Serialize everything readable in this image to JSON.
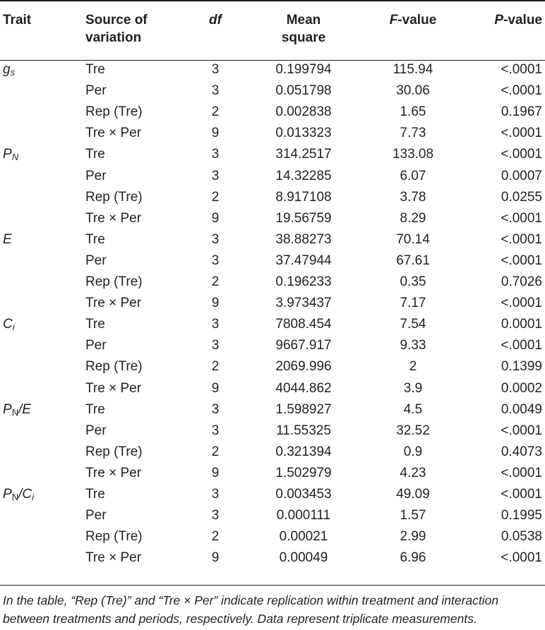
{
  "headers": {
    "trait": "Trait",
    "source_line1": "Source of",
    "source_line2": "variation",
    "df": "df",
    "mean_line1": "Mean",
    "mean_line2": "square",
    "f_italic": "F",
    "f_rest": "-value",
    "p_italic": "P",
    "p_rest": "-value"
  },
  "traits": [
    {
      "main": "g",
      "sub": "s",
      "suffix": ""
    },
    {
      "main": "P",
      "sub": "N",
      "suffix": ""
    },
    {
      "main": "E",
      "sub": "",
      "suffix": ""
    },
    {
      "main": "C",
      "sub": "i",
      "suffix": ""
    },
    {
      "main": "P",
      "sub": "N",
      "suffix": "/E"
    },
    {
      "main": "P",
      "sub": "N",
      "suffix": "/C",
      "suffix_sub": "i"
    }
  ],
  "rows": [
    {
      "source": "Tre",
      "df": "3",
      "ms": "0.199794",
      "f": "115.94",
      "p": "<.0001"
    },
    {
      "source": "Per",
      "df": "3",
      "ms": "0.051798",
      "f": "30.06",
      "p": "<.0001"
    },
    {
      "source": "Rep (Tre)",
      "df": "2",
      "ms": "0.002838",
      "f": "1.65",
      "p": "0.1967"
    },
    {
      "source": "Tre × Per",
      "df": "9",
      "ms": "0.013323",
      "f": "7.73",
      "p": "<.0001"
    },
    {
      "source": "Tre",
      "df": "3",
      "ms": "314.2517",
      "f": "133.08",
      "p": "<.0001"
    },
    {
      "source": "Per",
      "df": "3",
      "ms": "14.32285",
      "f": "6.07",
      "p": "0.0007"
    },
    {
      "source": "Rep (Tre)",
      "df": "2",
      "ms": "8.917108",
      "f": "3.78",
      "p": "0.0255"
    },
    {
      "source": "Tre × Per",
      "df": "9",
      "ms": "19.56759",
      "f": "8.29",
      "p": "<.0001"
    },
    {
      "source": "Tre",
      "df": "3",
      "ms": "38.88273",
      "f": "70.14",
      "p": "<.0001"
    },
    {
      "source": "Per",
      "df": "3",
      "ms": "37.47944",
      "f": "67.61",
      "p": "<.0001"
    },
    {
      "source": "Rep (Tre)",
      "df": "2",
      "ms": "0.196233",
      "f": "0.35",
      "p": "0.7026"
    },
    {
      "source": "Tre × Per",
      "df": "9",
      "ms": "3.973437",
      "f": "7.17",
      "p": "<.0001"
    },
    {
      "source": "Tre",
      "df": "3",
      "ms": "7808.454",
      "f": "7.54",
      "p": "0.0001"
    },
    {
      "source": "Per",
      "df": "3",
      "ms": "9667.917",
      "f": "9.33",
      "p": "<.0001"
    },
    {
      "source": "Rep (Tre)",
      "df": "2",
      "ms": "2069.996",
      "f": "2",
      "p": "0.1399"
    },
    {
      "source": "Tre × Per",
      "df": "9",
      "ms": "4044.862",
      "f": "3.9",
      "p": "0.0002"
    },
    {
      "source": "Tre",
      "df": "3",
      "ms": "1.598927",
      "f": "4.5",
      "p": "0.0049"
    },
    {
      "source": "Per",
      "df": "3",
      "ms": "11.55325",
      "f": "32.52",
      "p": "<.0001"
    },
    {
      "source": "Rep (Tre)",
      "df": "2",
      "ms": "0.321394",
      "f": "0.9",
      "p": "0.4073"
    },
    {
      "source": "Tre × Per",
      "df": "9",
      "ms": "1.502979",
      "f": "4.23",
      "p": "<.0001"
    },
    {
      "source": "Tre",
      "df": "3",
      "ms": "0.003453",
      "f": "49.09",
      "p": "<.0001"
    },
    {
      "source": "Per",
      "df": "3",
      "ms": "0.000111",
      "f": "1.57",
      "p": "0.1995"
    },
    {
      "source": "Rep (Tre)",
      "df": "2",
      "ms": "0.00021",
      "f": "2.99",
      "p": "0.0538"
    },
    {
      "source": "Tre × Per",
      "df": "9",
      "ms": "0.00049",
      "f": "6.96",
      "p": "<.0001"
    }
  ],
  "note": "In the table, “Rep (Tre)” and “Tre × Per” indicate replication within treatment and interaction between treatments and periods, respectively. Data represent triplicate measurements."
}
